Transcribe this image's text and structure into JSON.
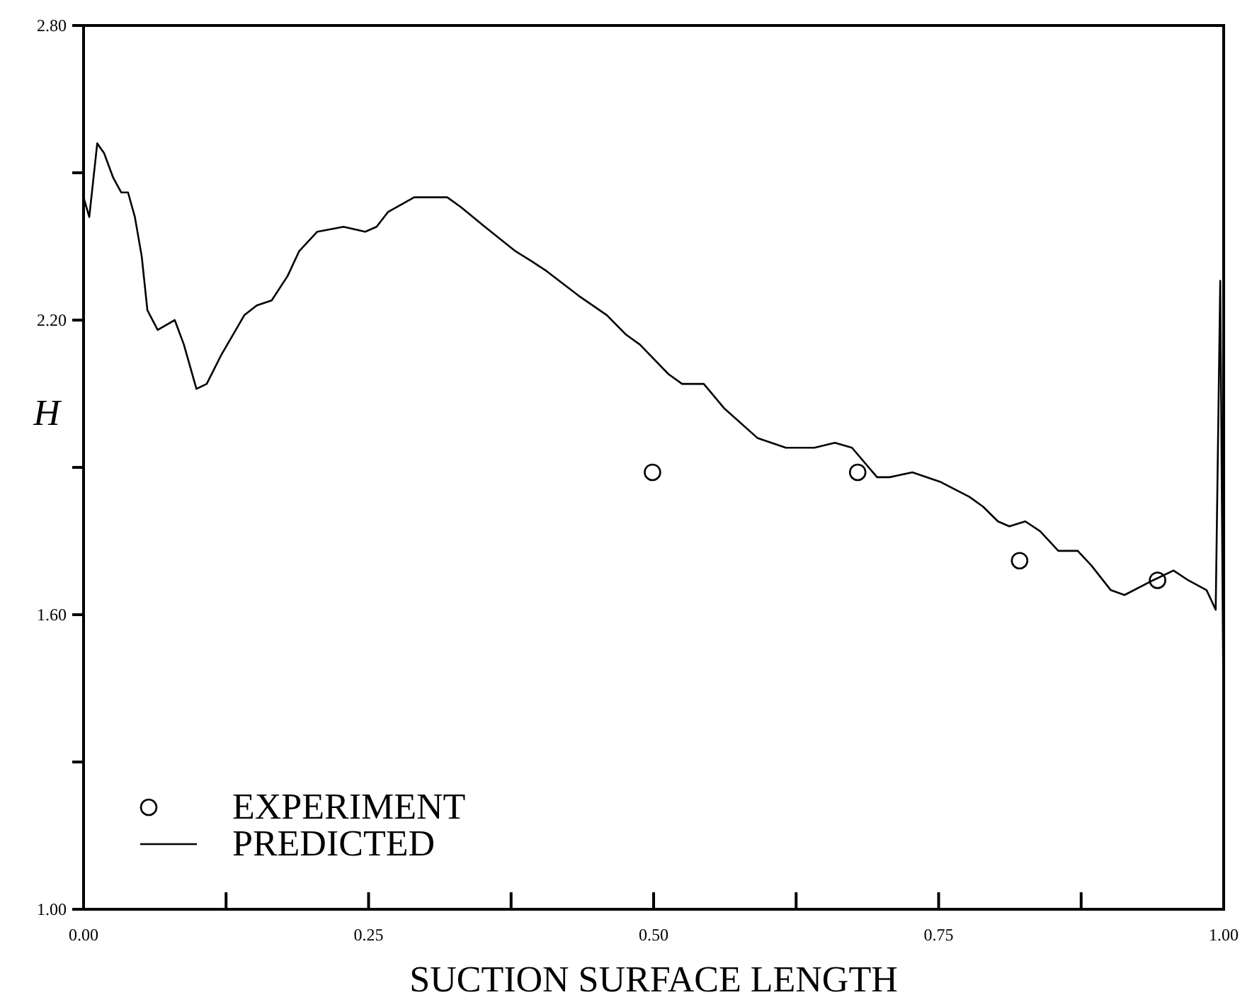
{
  "chart_data": {
    "type": "line",
    "xlabel": "SUCTION SURFACE LENGTH",
    "ylabel": "H",
    "xlim": [
      0,
      1
    ],
    "ylim": [
      1,
      2.8
    ],
    "xticks": [
      {
        "value": 0,
        "label": "0.00"
      },
      {
        "value": 0.125,
        "label": null
      },
      {
        "value": 0.25,
        "label": "0.25"
      },
      {
        "value": 0.375,
        "label": null
      },
      {
        "value": 0.5,
        "label": "0.50"
      },
      {
        "value": 0.625,
        "label": null
      },
      {
        "value": 0.75,
        "label": "0.75"
      },
      {
        "value": 0.875,
        "label": null
      },
      {
        "value": 1,
        "label": "1.00"
      }
    ],
    "yticks": [
      {
        "value": 1,
        "label": "1.00"
      },
      {
        "value": 1.3,
        "label": null
      },
      {
        "value": 1.6,
        "label": "1.60"
      },
      {
        "value": 1.9,
        "label": null
      },
      {
        "value": 2.2,
        "label": "2.20"
      },
      {
        "value": 2.5,
        "label": null
      },
      {
        "value": 2.8,
        "label": "2.80"
      }
    ],
    "grid": false,
    "legend": "bottom left",
    "series": [
      {
        "name": "EXPERIMENT",
        "type": "scatter",
        "marker": "circle",
        "color": "#000000",
        "x": [
          0.499,
          0.679,
          0.821,
          0.942
        ],
        "values": [
          1.89,
          1.89,
          1.71,
          1.67
        ]
      },
      {
        "name": "PREDICTED",
        "marker": "none",
        "line_style": "solid",
        "color": "#000000",
        "x": [
          0,
          0.005,
          0.012,
          0.018,
          0.026,
          0.033,
          0.039,
          0.045,
          0.051,
          0.056,
          0.065,
          0.08,
          0.088,
          0.099,
          0.108,
          0.121,
          0.141,
          0.152,
          0.165,
          0.179,
          0.189,
          0.205,
          0.228,
          0.247,
          0.257,
          0.267,
          0.29,
          0.306,
          0.319,
          0.331,
          0.352,
          0.379,
          0.393,
          0.406,
          0.434,
          0.459,
          0.476,
          0.488,
          0.513,
          0.525,
          0.544,
          0.562,
          0.591,
          0.616,
          0.641,
          0.659,
          0.674,
          0.696,
          0.707,
          0.727,
          0.752,
          0.777,
          0.789,
          0.802,
          0.812,
          0.826,
          0.839,
          0.855,
          0.872,
          0.884,
          0.901,
          0.913,
          0.938,
          0.956,
          0.969,
          0.985,
          0.993,
          0.997,
          1
        ],
        "values": [
          2.45,
          2.41,
          2.56,
          2.54,
          2.49,
          2.46,
          2.46,
          2.41,
          2.33,
          2.22,
          2.18,
          2.2,
          2.15,
          2.06,
          2.07,
          2.13,
          2.21,
          2.23,
          2.24,
          2.29,
          2.34,
          2.38,
          2.39,
          2.38,
          2.39,
          2.42,
          2.45,
          2.45,
          2.45,
          2.43,
          2.39,
          2.34,
          2.32,
          2.3,
          2.25,
          2.21,
          2.17,
          2.15,
          2.09,
          2.07,
          2.07,
          2.02,
          1.96,
          1.94,
          1.94,
          1.95,
          1.94,
          1.88,
          1.88,
          1.89,
          1.87,
          1.84,
          1.82,
          1.79,
          1.78,
          1.79,
          1.77,
          1.73,
          1.73,
          1.7,
          1.65,
          1.64,
          1.67,
          1.69,
          1.67,
          1.65,
          1.61,
          2.28,
          1.35
        ]
      }
    ]
  }
}
